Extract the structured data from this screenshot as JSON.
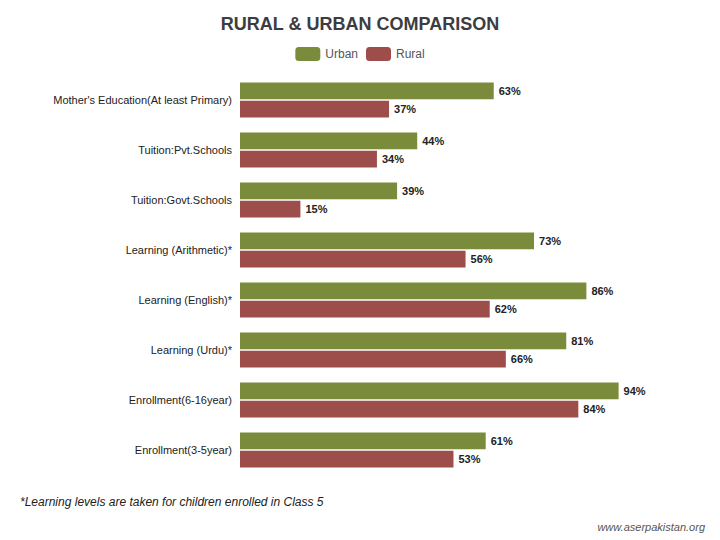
{
  "chart_data": {
    "type": "bar",
    "orientation": "horizontal",
    "title": "RURAL & URBAN COMPARISON",
    "categories": [
      "Mother's Education(At least Primary)",
      "Tuition:Pvt.Schools",
      "Tuition:Govt.Schools",
      "Learning (Arithmetic)*",
      "Learning (English)*",
      "Learning (Urdu)*",
      "Enrollment(6-16year)",
      "Enrollment(3-5year)"
    ],
    "series": [
      {
        "name": "Urban",
        "color": "#7a8c3b",
        "values": [
          63,
          44,
          39,
          73,
          86,
          81,
          94,
          61
        ],
        "value_labels": [
          "63%",
          "44%",
          "39%",
          "73%",
          "86%",
          "81%",
          "94%",
          "61%"
        ]
      },
      {
        "name": "Rural",
        "color": "#9e4e4a",
        "values": [
          37,
          34,
          15,
          56,
          62,
          66,
          84,
          53
        ],
        "value_labels": [
          "37%",
          "34%",
          "15%",
          "56%",
          "62%",
          "66%",
          "84%",
          "53%"
        ]
      }
    ],
    "xlim": [
      0,
      108
    ],
    "tick_labels": "y",
    "grid": false,
    "legend": "top",
    "data_labels": true,
    "annotations": [
      "*Learning levels are taken for children enrolled in Class 5",
      "www.aserpakistan.org"
    ]
  }
}
